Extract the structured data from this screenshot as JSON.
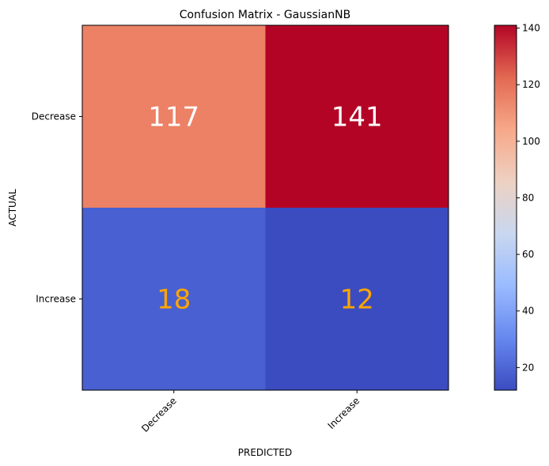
{
  "chart_data": {
    "type": "heatmap",
    "title": "Confusion Matrix - GaussianNB",
    "xlabel": "PREDICTED",
    "ylabel": "ACTUAL",
    "x_categories": [
      "Decrease",
      "Increase"
    ],
    "y_categories": [
      "Decrease",
      "Increase"
    ],
    "values": [
      [
        117,
        141
      ],
      [
        18,
        12
      ]
    ],
    "colormap": "coolwarm",
    "color_range": [
      12,
      141
    ],
    "colorbar_ticks": [
      20,
      40,
      60,
      80,
      100,
      120,
      140
    ],
    "colorbar_tick_labels": [
      "20",
      "40",
      "60",
      "80",
      "100",
      "120",
      "140"
    ],
    "cell_colors": [
      [
        "#ec8165",
        "#b40426"
      ],
      [
        "#4860d1",
        "#3b4cc0"
      ]
    ],
    "annotation_colors": [
      [
        "#ffffff",
        "#ffffff"
      ],
      [
        "#ffa500",
        "#ffa500"
      ]
    ],
    "colorbar_gradient": [
      "#3b4cc0",
      "#6788ee",
      "#9abbff",
      "#c9d7f0",
      "#edd1c2",
      "#f7a889",
      "#e26952",
      "#b40426"
    ]
  }
}
